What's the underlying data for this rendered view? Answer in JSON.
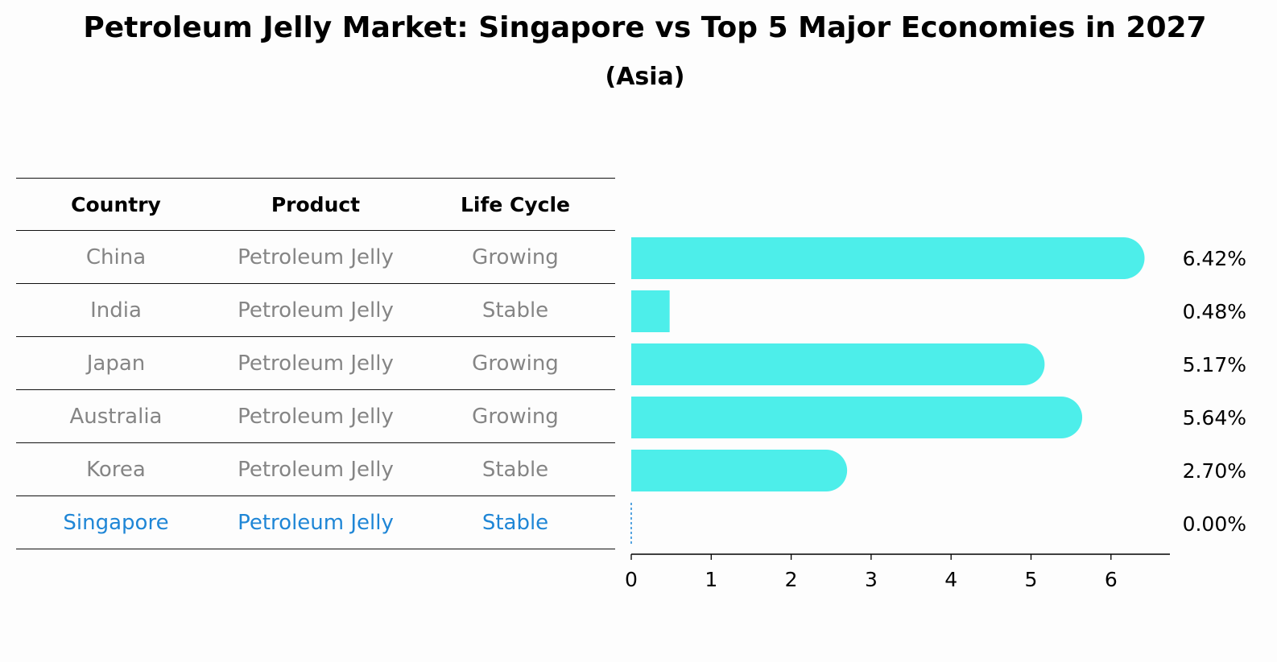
{
  "title": "Petroleum Jelly Market: Singapore vs Top 5 Major Economies in 2027",
  "subtitle": "(Asia)",
  "table": {
    "headers": [
      "Country",
      "Product",
      "Life Cycle"
    ],
    "rows": [
      {
        "country": "China",
        "product": "Petroleum Jelly",
        "life_cycle": "Growing"
      },
      {
        "country": "India",
        "product": "Petroleum Jelly",
        "life_cycle": "Stable"
      },
      {
        "country": "Japan",
        "product": "Petroleum Jelly",
        "life_cycle": "Growing"
      },
      {
        "country": "Australia",
        "product": "Petroleum Jelly",
        "life_cycle": "Growing"
      },
      {
        "country": "Korea",
        "product": "Petroleum Jelly",
        "life_cycle": "Stable"
      },
      {
        "country": "Singapore",
        "product": "Petroleum Jelly",
        "life_cycle": "Stable"
      }
    ]
  },
  "colors": {
    "bar": "#4deeea",
    "highlight": "#1f86d6",
    "muted_text": "#858585"
  },
  "chart_data": {
    "type": "bar",
    "orientation": "horizontal",
    "categories": [
      "China",
      "India",
      "Japan",
      "Australia",
      "Korea",
      "Singapore"
    ],
    "values": [
      6.42,
      0.48,
      5.17,
      5.64,
      2.7,
      0.0
    ],
    "value_labels": [
      "6.42%",
      "0.48%",
      "5.17%",
      "5.64%",
      "2.70%",
      "0.00%"
    ],
    "xlim": [
      0,
      6.75
    ],
    "xticks": [
      0,
      1,
      2,
      3,
      4,
      5,
      6
    ],
    "highlight_category": "Singapore",
    "title": "Petroleum Jelly Market: Singapore vs Top 5 Major Economies in 2027",
    "xlabel": "",
    "ylabel": ""
  }
}
